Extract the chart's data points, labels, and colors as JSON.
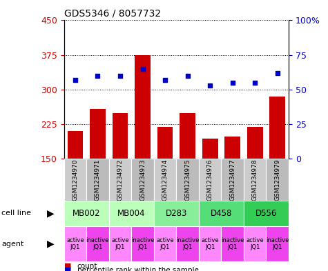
{
  "title": "GDS5346 / 8057732",
  "samples": [
    "GSM1234970",
    "GSM1234971",
    "GSM1234972",
    "GSM1234973",
    "GSM1234974",
    "GSM1234975",
    "GSM1234976",
    "GSM1234977",
    "GSM1234978",
    "GSM1234979"
  ],
  "counts": [
    210,
    258,
    248,
    375,
    218,
    248,
    193,
    198,
    218,
    285
  ],
  "percentile_ranks": [
    57,
    60,
    60,
    65,
    57,
    60,
    53,
    55,
    55,
    62
  ],
  "ymin": 150,
  "ymax": 450,
  "yticks": [
    150,
    225,
    300,
    375,
    450
  ],
  "y2min": 0,
  "y2max": 100,
  "y2ticks": [
    0,
    25,
    50,
    75,
    100
  ],
  "cell_lines": [
    {
      "label": "MB002",
      "cols": [
        0,
        1
      ],
      "color": "#bbffbb"
    },
    {
      "label": "MB004",
      "cols": [
        2,
        3
      ],
      "color": "#bbffbb"
    },
    {
      "label": "D283",
      "cols": [
        4,
        5
      ],
      "color": "#88ee99"
    },
    {
      "label": "D458",
      "cols": [
        6,
        7
      ],
      "color": "#55dd77"
    },
    {
      "label": "D556",
      "cols": [
        8,
        9
      ],
      "color": "#33cc55"
    }
  ],
  "agents": [
    "active\nJQ1",
    "inactive\nJQ1",
    "active\nJQ1",
    "inactive\nJQ1",
    "active\nJQ1",
    "inactive\nJQ1",
    "active\nJQ1",
    "inactive\nJQ1",
    "active\nJQ1",
    "inactive\nJQ1"
  ],
  "agent_active_color": "#ff88ff",
  "agent_inactive_color": "#ee44ee",
  "bar_color": "#cc0000",
  "dot_color": "#0000cc",
  "ylabel_color": "#cc0000",
  "y2label_color": "#0000cc",
  "sample_color_even": "#cccccc",
  "sample_color_odd": "#bbbbbb"
}
